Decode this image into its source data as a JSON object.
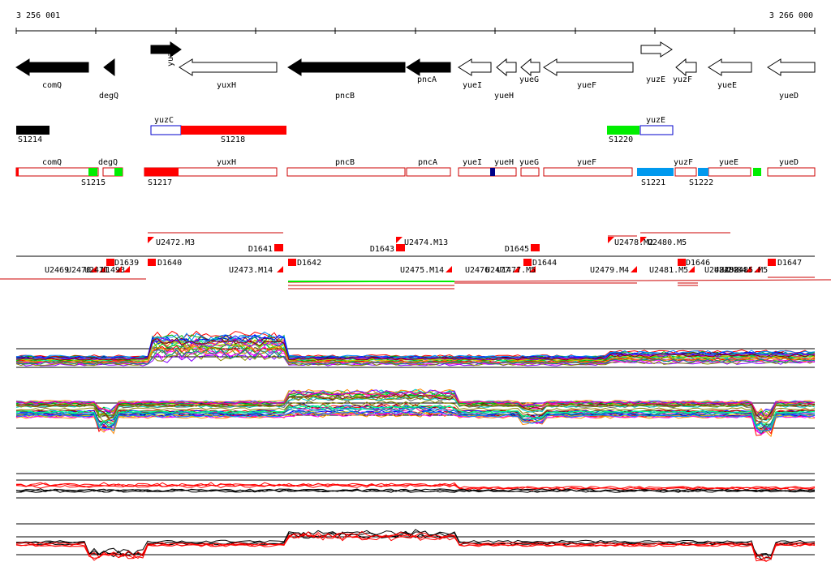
{
  "coords": {
    "start": "3 256 001",
    "end": "3 266 000"
  },
  "genes": [
    {
      "name": "comQ",
      "strand": "-",
      "filled": true
    },
    {
      "name": "degQ",
      "strand": "-",
      "filled": true
    },
    {
      "name": "yuzC",
      "strand": "+",
      "filled": true
    },
    {
      "name": "yuxH",
      "strand": "-",
      "filled": false
    },
    {
      "name": "pncB",
      "strand": "-",
      "filled": true
    },
    {
      "name": "pncA",
      "strand": "-",
      "filled": true
    },
    {
      "name": "yueI",
      "strand": "-",
      "filled": false
    },
    {
      "name": "yueH",
      "strand": "-",
      "filled": false
    },
    {
      "name": "yueG",
      "strand": "-",
      "filled": false
    },
    {
      "name": "yueF",
      "strand": "-",
      "filled": false
    },
    {
      "name": "yuzE",
      "strand": "+",
      "filled": false
    },
    {
      "name": "yuzF",
      "strand": "-",
      "filled": false
    },
    {
      "name": "yueE",
      "strand": "-",
      "filled": false
    },
    {
      "name": "yueD",
      "strand": "-",
      "filled": false
    }
  ],
  "segments": [
    {
      "label": "S1214",
      "color": "#000000"
    },
    {
      "label": "yuzC",
      "color": "#ffffff",
      "border": "#0000cc"
    },
    {
      "label": "S1218",
      "color": "#ff0000"
    },
    {
      "label": "S1220",
      "color": "#00ee00"
    },
    {
      "label": "yuzE",
      "color": "#ffffff",
      "border": "#0000cc"
    }
  ],
  "cds_track": [
    {
      "label": "comQ"
    },
    {
      "label": "degQ"
    },
    {
      "label": "yuxH"
    },
    {
      "label": "pncB"
    },
    {
      "label": "pncA"
    },
    {
      "label": "yueI"
    },
    {
      "label": "yueH"
    },
    {
      "label": "yueG"
    },
    {
      "label": "yueF"
    },
    {
      "label": "yuzF"
    },
    {
      "label": "yueE"
    },
    {
      "label": "yueD"
    }
  ],
  "cds_features": [
    "S1215",
    "S1217",
    "S1221",
    "S1222"
  ],
  "up_features": [
    "U2472.M3",
    "D1641",
    "D1643",
    "U2474.M13",
    "D1645",
    "U2478.M2",
    "U2480.M5"
  ],
  "down_features": [
    "U2469",
    "U2470",
    "U2471",
    "U1493",
    "D1639",
    "D1640",
    "U2473.M14",
    "D1642",
    "U2475.M14",
    "U2476",
    "U2477",
    "U1477.M5",
    "D1644",
    "U2479.M4",
    "U2481.M5",
    "D1646",
    "U2482",
    "U2483",
    "U2484",
    "U2485.M5",
    "D1647"
  ],
  "colors": {
    "black_fill": "#000000",
    "outline_red": "#cc0000",
    "red": "#ff0000",
    "green": "#00ee00",
    "cyan": "#0099ee",
    "navy": "#000088"
  }
}
